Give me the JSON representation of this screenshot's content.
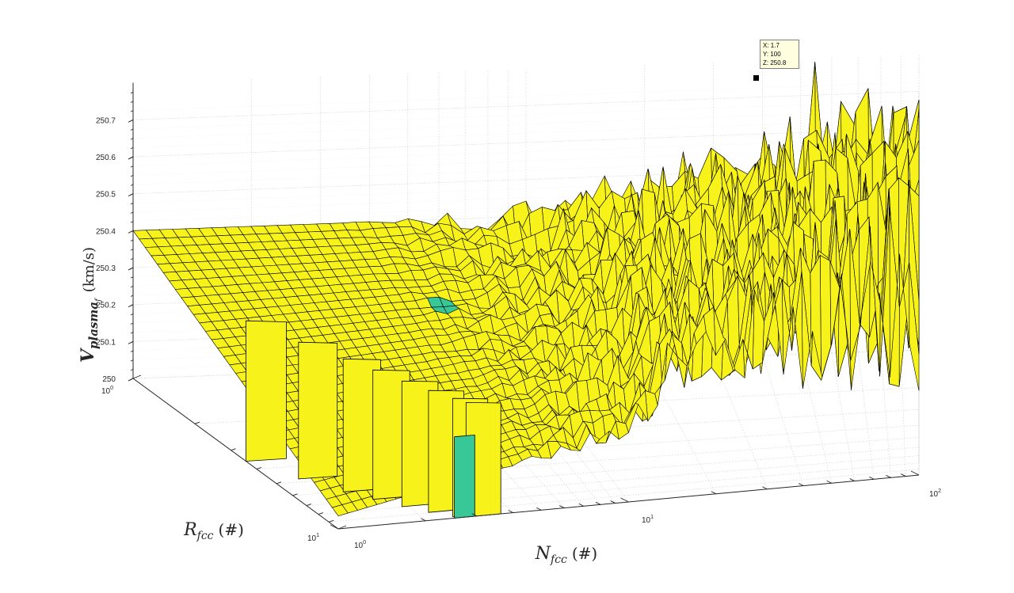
{
  "chart_data": {
    "type": "surface",
    "title": "",
    "zlabel_main": "V",
    "zlabel_sub": "plasma",
    "zlabel_subsub": "f",
    "zlabel_unit": "(km/s)",
    "xlabel_main": "N",
    "xlabel_sub": "fcc",
    "xlabel_unit": "(#)",
    "ylabel_main": "R",
    "ylabel_sub": "fcc",
    "ylabel_unit": "(#)",
    "x_scale": "log",
    "y_scale": "log",
    "xlim": [
      1,
      100
    ],
    "ylim": [
      1,
      10
    ],
    "zlim": [
      250,
      250.75
    ],
    "z_ticks": [
      "250",
      "250.1",
      "250.2",
      "250.3",
      "250.4",
      "250.5",
      "250.6",
      "250.7"
    ],
    "x_ticks": [
      {
        "base": "10",
        "exp": "0"
      },
      {
        "base": "10",
        "exp": "1"
      },
      {
        "base": "10",
        "exp": "2"
      }
    ],
    "y_ticks": [
      {
        "base": "10",
        "exp": "0"
      },
      {
        "base": "10",
        "exp": "1"
      }
    ],
    "grid": true,
    "surface_color": "#f7f21a",
    "accent_color": "#38c796",
    "edge_color": "#000000",
    "plateau_value": 250.4,
    "floor_value": 250.0,
    "noise_peak_value": 250.8
  },
  "datatip": {
    "x_line": "X: 1.7",
    "y_line": "Y: 100",
    "z_line": "Z: 250.8"
  }
}
